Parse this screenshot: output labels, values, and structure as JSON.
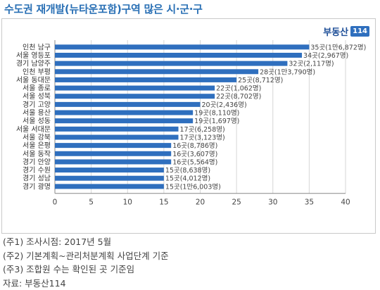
{
  "header": {
    "title": "수도권 재개발(뉴타운포함)구역 많은 시·군·구",
    "logo_text": "부동산",
    "logo_badge": "114"
  },
  "chart_data": {
    "type": "bar",
    "orientation": "horizontal",
    "title": "",
    "xlabel": "",
    "ylabel": "",
    "xlim": [
      0,
      40
    ],
    "ticks": [
      0,
      5,
      10,
      15,
      20,
      25,
      30,
      35,
      40
    ],
    "grid": true,
    "bar_color": "#2f6fbe",
    "categories": [
      "인천 남구",
      "서울 영등포",
      "경기 남양주",
      "인천 부평",
      "서울 동대문",
      "서울 종로",
      "서울 성북",
      "경기 고양",
      "서울 용산",
      "서울 성동",
      "서울 서대문",
      "서울 강북",
      "서울 은평",
      "서울 동작",
      "경기 안양",
      "경기 수원",
      "경기 성남",
      "경기 광명"
    ],
    "values": [
      35,
      34,
      32,
      28,
      25,
      22,
      22,
      20,
      19,
      19,
      17,
      17,
      16,
      16,
      16,
      15,
      15,
      15
    ],
    "data_labels": [
      "35곳(1만6,872명)",
      "34곳(2,967명)",
      "32곳(2,117명)",
      "28곳(1만3,790명)",
      "25곳(8,712명)",
      "22곳(1,062명)",
      "22곳(8,702명)",
      "20곳(2,436명)",
      "19곳(8,110명)",
      "19곳(1,697명)",
      "17곳(6,258명)",
      "17곳(3,123명)",
      "16곳(8,786명)",
      "16곳(3,607명)",
      "16곳(5,564명)",
      "15곳(8,638명)",
      "15곳(4,012명)",
      "15곳(1만6,003명)"
    ]
  },
  "notes": [
    "(주1) 조사시점: 2017년 5월",
    "(주2) 기본계획~관리처분계획 사업단계 기준",
    "(주3) 조합원 수는 확인된 곳 기준임",
    "자료: 부동산114"
  ]
}
